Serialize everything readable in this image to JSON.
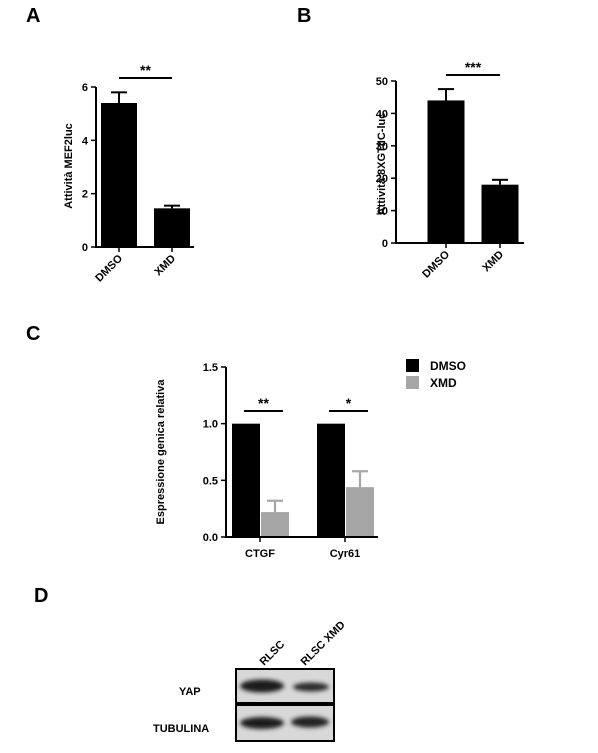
{
  "panels": {
    "A": "A",
    "B": "B",
    "C": "C",
    "D": "D"
  },
  "colors": {
    "dmso": "#000000",
    "xmd": "#a6a6a6"
  },
  "chart_data": [
    {
      "id": "A",
      "type": "bar",
      "categories": [
        "DMSO",
        "XMD"
      ],
      "values": [
        5.4,
        1.45
      ],
      "errors": [
        0.4,
        0.1
      ],
      "ylabel": "Attività MEF2luc",
      "ylim": [
        0,
        6
      ],
      "yticks": [
        0,
        2,
        4,
        6
      ],
      "significance": "**",
      "legend": "none",
      "grid": false
    },
    {
      "id": "B",
      "type": "bar",
      "categories": [
        "DMSO",
        "XMD"
      ],
      "values": [
        44,
        18
      ],
      "errors": [
        3.5,
        1.5
      ],
      "ylabel": "Attività 8XGTIIC-luc",
      "ylim": [
        0,
        50
      ],
      "yticks": [
        0,
        10,
        20,
        30,
        40,
        50
      ],
      "significance": "***",
      "legend": "none",
      "grid": false
    },
    {
      "id": "C",
      "type": "bar",
      "categories": [
        "CTGF",
        "Cyr61"
      ],
      "series": [
        {
          "name": "DMSO",
          "values": [
            1.0,
            1.0
          ],
          "errors": [
            0,
            0
          ]
        },
        {
          "name": "XMD",
          "values": [
            0.22,
            0.44
          ],
          "errors": [
            0.1,
            0.14
          ]
        }
      ],
      "ylabel": "Espressione genica relativa",
      "ylim": [
        0,
        1.5
      ],
      "yticks": [
        "0.0",
        "0.5",
        "1.0",
        "1.5"
      ],
      "significance": [
        "**",
        "*"
      ],
      "legend": "right",
      "grid": false
    }
  ],
  "blot": {
    "lanes": [
      "RLSC",
      "RLSC XMD"
    ],
    "rows": [
      "YAP",
      "TUBULINA"
    ]
  }
}
